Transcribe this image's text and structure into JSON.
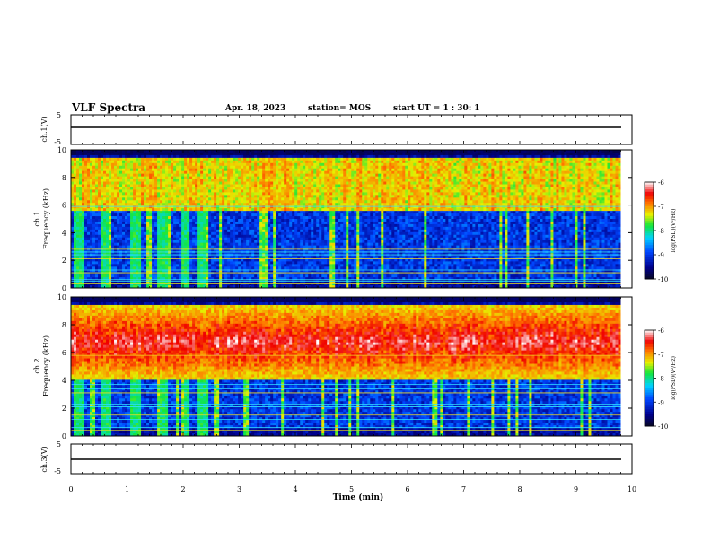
{
  "header": {
    "title": "VLF Spectra",
    "date": "Apr. 18, 2023",
    "station": "station= MOS",
    "start_ut": "start UT =  1 : 30: 1"
  },
  "colorbar": {
    "label": "log(PSD)(V²/Hz)",
    "ticks": [
      "-6",
      "-7",
      "-8",
      "-9",
      "-10"
    ]
  },
  "chart_data": [
    {
      "type": "line",
      "ylabel": "ch.1(V)",
      "ylim": [
        -5,
        5
      ],
      "yticks": [
        "5",
        "-5"
      ],
      "xlim": [
        0,
        10
      ],
      "series": [
        {
          "x": [
            0,
            9.8
          ],
          "y": [
            0,
            0
          ]
        }
      ]
    },
    {
      "type": "heatmap",
      "ylabel": "ch.1\nFrequency (kHz)",
      "xlim": [
        0,
        10
      ],
      "ylim": [
        0,
        10
      ],
      "yticks": [
        "0",
        "2",
        "4",
        "6",
        "8",
        "10"
      ],
      "data_end_min": 9.8,
      "color_range": [
        -10,
        -6
      ],
      "bursts_min": [
        0.05,
        0.55,
        1.05,
        1.55,
        1.95,
        2.25
      ],
      "emission_band_khz": [
        5.5,
        9.5
      ],
      "lines_khz": [
        0.3,
        0.5,
        0.6,
        1.1,
        1.3,
        1.6,
        2.1,
        2.4,
        2.6,
        2.8,
        5.9
      ]
    },
    {
      "type": "heatmap",
      "ylabel": "ch.2\nFrequency (kHz)",
      "xlim": [
        0,
        10
      ],
      "ylim": [
        0,
        10
      ],
      "yticks": [
        "0",
        "2",
        "4",
        "6",
        "8",
        "10"
      ],
      "data_end_min": 9.8,
      "color_range": [
        -10,
        -6
      ],
      "bursts_min": [
        0.05,
        0.55,
        1.05,
        1.55,
        1.95,
        2.25
      ],
      "emission_band_khz": [
        4.0,
        9.5
      ],
      "lines_khz": [
        0.4,
        0.6,
        1.2,
        1.5,
        2.1,
        2.3,
        3.1,
        3.4,
        3.7,
        5.8
      ]
    },
    {
      "type": "line",
      "ylabel": "ch.3(V)",
      "ylim": [
        -5,
        5
      ],
      "yticks": [
        "5",
        "-5"
      ],
      "xlim": [
        0,
        10
      ],
      "xlabel": "Time (min)",
      "xticks": [
        "0",
        "1",
        "2",
        "3",
        "4",
        "5",
        "6",
        "7",
        "8",
        "9",
        "10"
      ],
      "series": [
        {
          "x": [
            0,
            9.8
          ],
          "y": [
            0,
            0
          ]
        }
      ]
    }
  ]
}
